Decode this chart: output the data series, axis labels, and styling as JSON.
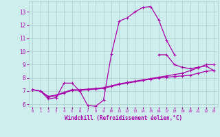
{
  "xlabel": "Windchill (Refroidissement éolien,°C)",
  "xlim": [
    -0.5,
    23.5
  ],
  "ylim": [
    5.8,
    13.8
  ],
  "yticks": [
    6,
    7,
    8,
    9,
    10,
    11,
    12,
    13
  ],
  "xticks": [
    0,
    1,
    2,
    3,
    4,
    5,
    6,
    7,
    8,
    9,
    10,
    11,
    12,
    13,
    14,
    15,
    16,
    17,
    18,
    19,
    20,
    21,
    22,
    23
  ],
  "bg_color": "#cdeeed",
  "line_color": "#aa00aa",
  "grid_color": "#aacccc",
  "series1_x": [
    0,
    1,
    2,
    3,
    4,
    5,
    6,
    7,
    8,
    9,
    10,
    11,
    12,
    13,
    14,
    15,
    16,
    17,
    18,
    19,
    20,
    21,
    22,
    23
  ],
  "series1_y": [
    7.1,
    7.0,
    6.4,
    6.5,
    7.6,
    7.6,
    7.0,
    5.9,
    5.85,
    6.3,
    9.8,
    12.3,
    12.55,
    13.0,
    13.35,
    13.4,
    12.4,
    10.85,
    9.75,
    null,
    null,
    null,
    null,
    null
  ],
  "series2_x": [
    0,
    1,
    2,
    3,
    4,
    5,
    6,
    7,
    8,
    9,
    10,
    11,
    12,
    13,
    14,
    15,
    16,
    17,
    18,
    19,
    20,
    21,
    22,
    23
  ],
  "series2_y": [
    7.1,
    7.0,
    6.6,
    6.7,
    6.9,
    7.1,
    7.1,
    7.15,
    7.2,
    7.25,
    7.4,
    7.55,
    7.65,
    7.75,
    7.85,
    7.95,
    8.05,
    8.15,
    8.25,
    8.35,
    8.55,
    8.75,
    9.0,
    9.0
  ],
  "series3_x": [
    0,
    1,
    2,
    3,
    4,
    5,
    6,
    7,
    8,
    9,
    10,
    11,
    12,
    13,
    14,
    15,
    16,
    17,
    18,
    19,
    20,
    21,
    22,
    23
  ],
  "series3_y": [
    7.1,
    7.0,
    6.55,
    6.65,
    6.85,
    7.05,
    7.05,
    7.1,
    7.15,
    7.2,
    7.35,
    7.5,
    7.6,
    7.7,
    7.8,
    7.9,
    8.0,
    8.05,
    8.1,
    8.15,
    8.2,
    8.35,
    8.5,
    8.55
  ],
  "series4_x": [
    16,
    17,
    18,
    19,
    20,
    21,
    22,
    23
  ],
  "series4_y": [
    9.75,
    9.75,
    9.0,
    8.8,
    8.7,
    8.8,
    8.9,
    8.55
  ]
}
